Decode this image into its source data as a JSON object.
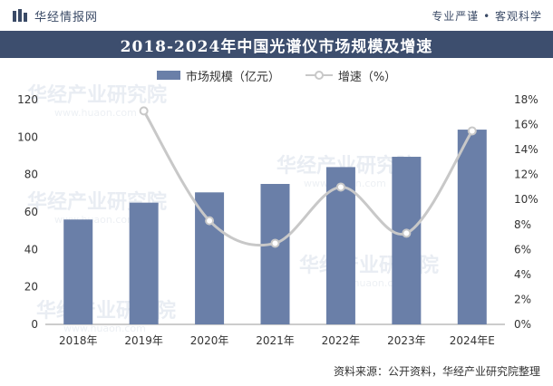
{
  "header": {
    "brand": "华经情报网",
    "slogan": "专业严谨 • 客观科学"
  },
  "title": "2018-2024年中国光谱仪市场规模及增速",
  "legend": {
    "bar_label": "市场规模（亿元）",
    "line_label": "增速（%）"
  },
  "source": "资料来源：公开资料，华经产业研究院整理",
  "watermark": {
    "text": "华经产业研究院",
    "url": "www.huaon.com"
  },
  "colors": {
    "bar": "#6a7fa8",
    "line": "#c8c8c8",
    "title_bg": "#3d4e6e"
  },
  "chart_data": {
    "type": "bar",
    "categories": [
      "2018年",
      "2019年",
      "2020年",
      "2021年",
      "2022年",
      "2023年",
      "2024年E"
    ],
    "series": [
      {
        "name": "市场规模（亿元）",
        "type": "bar",
        "axis": "left",
        "values": [
          56,
          65,
          70.5,
          75,
          84,
          89.5,
          104
        ]
      },
      {
        "name": "增速（%）",
        "type": "line",
        "axis": "right",
        "values": [
          null,
          17.1,
          8.3,
          6.5,
          11.0,
          7.3,
          15.5
        ]
      }
    ],
    "y_left": {
      "min": 0,
      "max": 120,
      "ticks": [
        "0",
        "20",
        "40",
        "60",
        "80",
        "100",
        "120"
      ]
    },
    "y_right": {
      "min": 0,
      "max": 18,
      "ticks": [
        "0%",
        "2%",
        "4%",
        "6%",
        "8%",
        "10%",
        "12%",
        "14%",
        "16%",
        "18%"
      ]
    },
    "grid": false,
    "legend_position": "top-center"
  }
}
